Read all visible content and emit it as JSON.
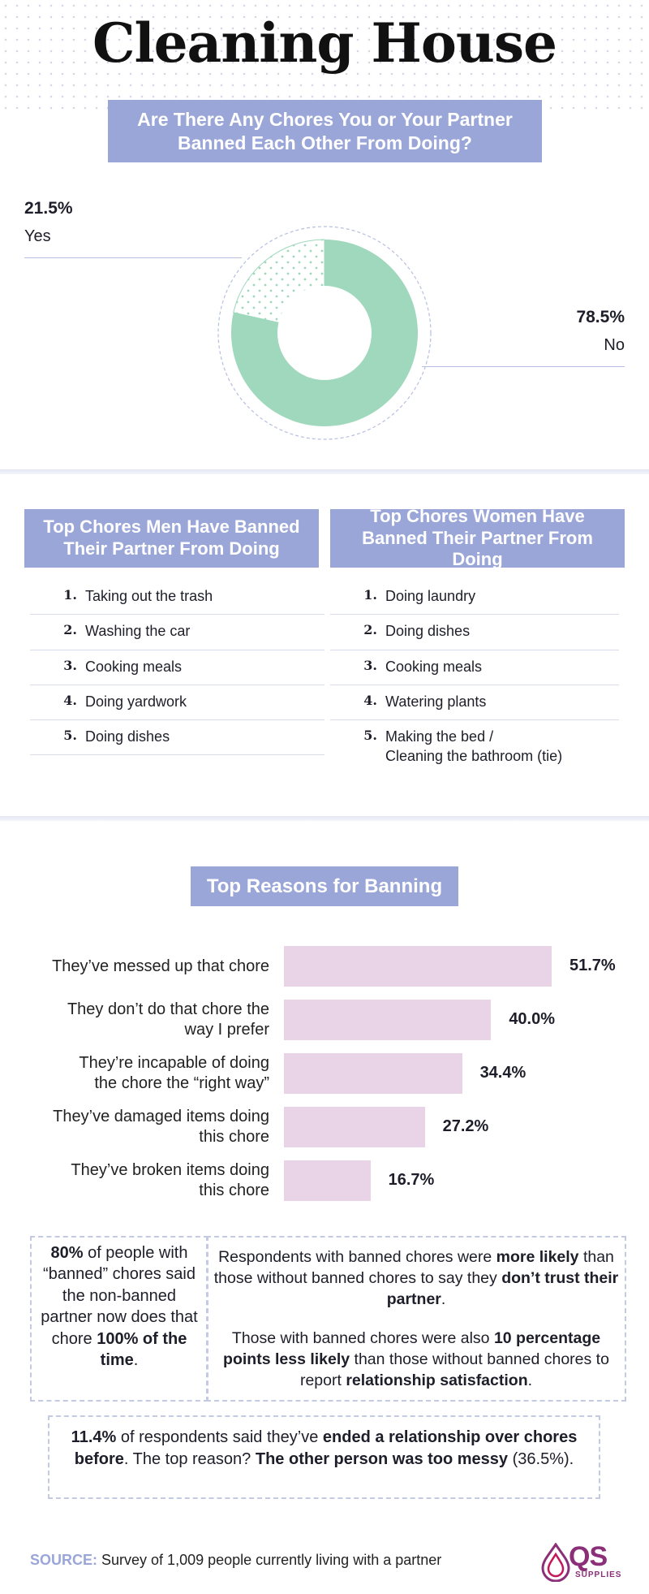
{
  "header": {
    "title": "Cleaning House"
  },
  "question": {
    "text": "Are There Any Chores You or Your Partner Banned Each Other From Doing?"
  },
  "chart_data": [
    {
      "type": "pie",
      "title": "Are There Any Chores You or Your Partner Banned Each Other From Doing?",
      "slices": [
        {
          "label": "Yes",
          "value": 21.5,
          "display": "21.5%"
        },
        {
          "label": "No",
          "value": 78.5,
          "display": "78.5%"
        }
      ],
      "colors": {
        "yes": "#ffffff",
        "no": "#9fd8bc",
        "yes_dots": "#9fd8bc",
        "ring": "#b7bfe0"
      }
    },
    {
      "type": "bar",
      "title": "Top Reasons for Banning",
      "orientation": "horizontal",
      "categories": [
        "They've messed up that chore",
        "They don't do that chore the way I prefer",
        "They're incapable of doing the chore the “right way”",
        "They've damaged items doing this chore",
        "They've broken items doing this chore"
      ],
      "labels_display": [
        [
          "They’ve messed up that chore"
        ],
        [
          "They don’t do that chore the",
          "way I prefer"
        ],
        [
          "They’re incapable of doing",
          "the chore the “right way”"
        ],
        [
          "They’ve damaged items doing",
          "this chore"
        ],
        [
          "They’ve broken items doing",
          "this chore"
        ]
      ],
      "values": [
        51.7,
        40.0,
        34.4,
        27.2,
        16.7
      ],
      "value_labels": [
        "51.7%",
        "40.0%",
        "34.4%",
        "27.2%",
        "16.7%"
      ],
      "bar_color": "#e8d4e6"
    }
  ],
  "men": {
    "title": "Top Chores Men Have Banned Their Partner From Doing",
    "items": [
      {
        "num": "1.",
        "text": "Taking out the trash"
      },
      {
        "num": "2.",
        "text": "Washing the car"
      },
      {
        "num": "3.",
        "text": "Cooking meals"
      },
      {
        "num": "4.",
        "text": "Doing yardwork"
      },
      {
        "num": "5.",
        "text": "Doing dishes"
      }
    ]
  },
  "women": {
    "title": "Top Chores Women Have Banned Their Partner From Doing",
    "items": [
      {
        "num": "1.",
        "text": "Doing laundry"
      },
      {
        "num": "2.",
        "text": "Doing dishes"
      },
      {
        "num": "3.",
        "text": "Cooking meals"
      },
      {
        "num": "4.",
        "text": "Watering plants"
      },
      {
        "num": "5.",
        "text": "Making the bed /",
        "text2": "Cleaning the bathroom (tie)"
      }
    ]
  },
  "reasons": {
    "title": "Top Reasons for Banning"
  },
  "stats": {
    "left": {
      "pct": "80%",
      "a": " of people with “banned” chores said the non-banned partner now does that chore ",
      "b": "100% of the time",
      "c": "."
    },
    "right1": {
      "a": "Respondents with banned chores were ",
      "b": "more likely",
      "c": " than those without banned chores to say they ",
      "d": "don’t trust their partner",
      "e": "."
    },
    "right2": {
      "a": "Those with banned chores were also ",
      "b": "10 percentage points less likely",
      "c": " than those without banned chores to report ",
      "d": "relationship satisfaction",
      "e": "."
    },
    "bottom": {
      "a": "11.4%",
      "b": " of respondents said they’ve ",
      "c": "ended a relationship over chores before",
      "d": ". The top reason? ",
      "e": "The other person was too messy",
      "f": " (36.5%)."
    }
  },
  "footer": {
    "source_key": "SOURCE:",
    "source_text": " Survey of 1,009 people currently living with a partner",
    "logo_main": "QS",
    "logo_sub": "SUPPLIES"
  }
}
